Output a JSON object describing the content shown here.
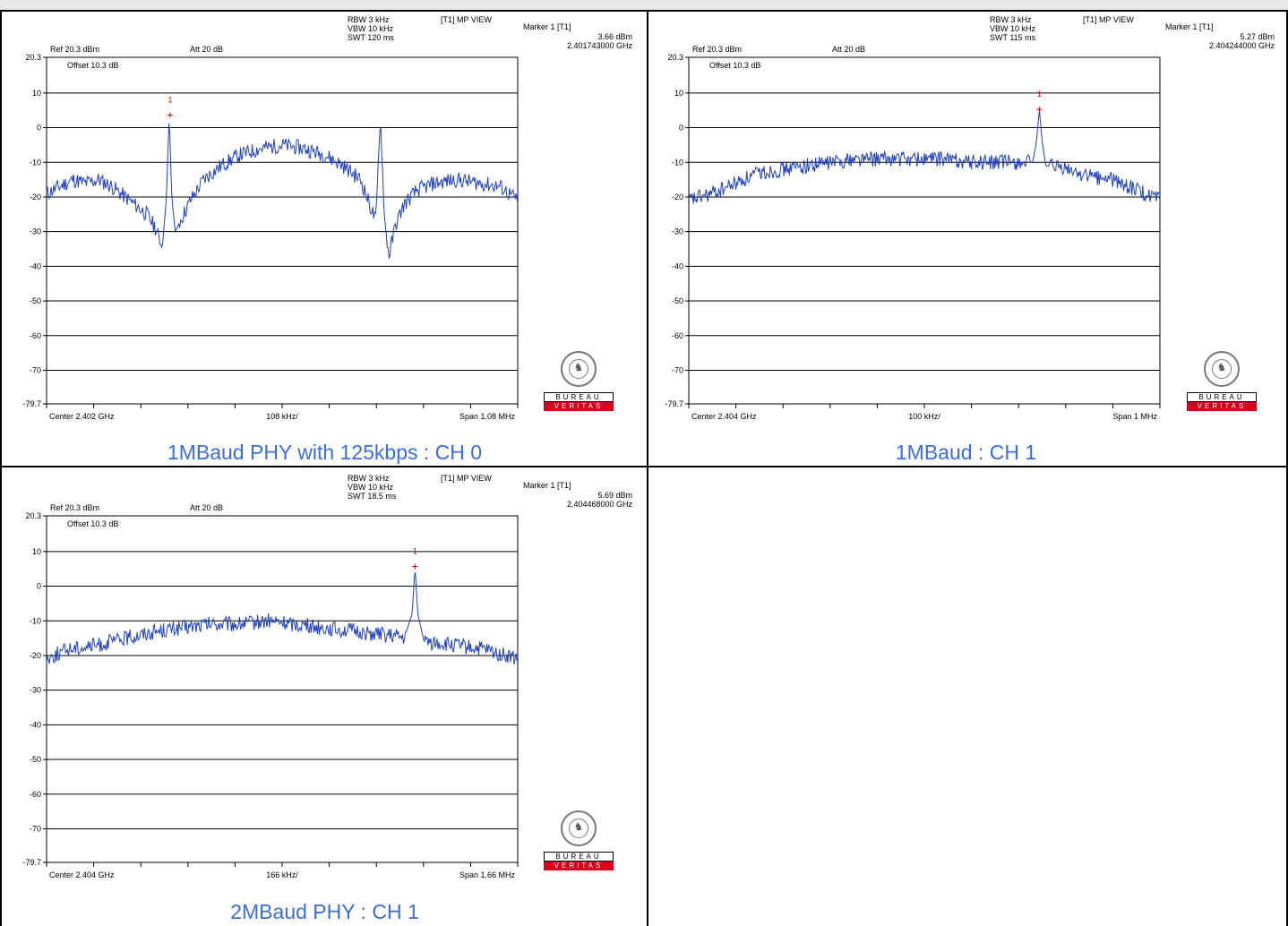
{
  "panels": [
    {
      "caption": "1MBaud PHY with 125kbps : CH 0",
      "ref": "Ref 20.3 dBm",
      "att": "Att  20 dB",
      "offset": "Offset 10.3 dB",
      "rbw": "RBW 3 kHz",
      "vbw": "VBW 10 kHz",
      "swt": "SWT 120 ms",
      "trace": "[T1] MP VIEW",
      "marker_title": "Marker 1 [T1]",
      "marker_level": "3.66 dBm",
      "marker_freq": "2.401743000 GHz",
      "center": "Center 2.402 GHz",
      "div": "108 kHz/",
      "span": "Span 1.08 MHz",
      "logo_top": "BUREAU",
      "logo_bottom": "VERITAS"
    },
    {
      "caption": "1MBaud    : CH 1",
      "ref": "Ref 20.3 dBm",
      "att": "Att  20 dB",
      "offset": "Offset 10.3 dB",
      "rbw": "RBW 3 kHz",
      "vbw": "VBW 10 kHz",
      "swt": "SWT 115 ms",
      "trace": "[T1] MP VIEW",
      "marker_title": "Marker 1 [T1]",
      "marker_level": "5.27 dBm",
      "marker_freq": "2.404244000 GHz",
      "center": "Center 2.404 GHz",
      "div": "100 kHz/",
      "span": "Span 1 MHz",
      "logo_top": "BUREAU",
      "logo_bottom": "VERITAS"
    },
    {
      "caption": "2MBaud PHY : CH 1",
      "ref": "Ref 20.3 dBm",
      "att": "Att  20 dB",
      "offset": "Offset 10.3 dB",
      "rbw": "RBW 3 kHz",
      "vbw": "VBW 10 kHz",
      "swt": "SWT 18.5 ms",
      "trace": "[T1] MP VIEW",
      "marker_title": "Marker 1 [T1]",
      "marker_level": "5.69 dBm",
      "marker_freq": "2.404468000 GHz",
      "center": "Center 2.404 GHz",
      "div": "166 kHz/",
      "span": "Span 1.66 MHz",
      "logo_top": "BUREAU",
      "logo_bottom": "VERITAS"
    }
  ],
  "chart_data": [
    {
      "type": "line",
      "title": "",
      "xlabel": "",
      "ylabel": "",
      "x_center_ghz": 2.402,
      "x_span_mhz": 1.08,
      "ylim": [
        -79.7,
        20.3
      ],
      "yticks": [
        "20.3",
        "10",
        "0",
        "-10",
        "-20",
        "-30",
        "-40",
        "-50",
        "-60",
        "-70",
        "-79.7"
      ],
      "marker": {
        "label": "1",
        "x_ghz": 2.401743,
        "y_dbm": 3.66
      },
      "series": [
        {
          "color": "#1f3fbf",
          "points_mhz_offset_dbm": [
            [
              -0.54,
              -19
            ],
            [
              -0.51,
              -17
            ],
            [
              -0.48,
              -15
            ],
            [
              -0.45,
              -16
            ],
            [
              -0.42,
              -15
            ],
            [
              -0.39,
              -17
            ],
            [
              -0.36,
              -20
            ],
            [
              -0.33,
              -23
            ],
            [
              -0.31,
              -25
            ],
            [
              -0.29,
              -29
            ],
            [
              -0.275,
              -35
            ],
            [
              -0.265,
              -20
            ],
            [
              -0.259,
              3.7
            ],
            [
              -0.253,
              -20
            ],
            [
              -0.245,
              -30
            ],
            [
              -0.23,
              -26
            ],
            [
              -0.21,
              -21
            ],
            [
              -0.18,
              -15
            ],
            [
              -0.14,
              -11
            ],
            [
              -0.1,
              -8
            ],
            [
              -0.05,
              -6
            ],
            [
              0.0,
              -5
            ],
            [
              0.05,
              -6
            ],
            [
              0.1,
              -8
            ],
            [
              0.14,
              -11
            ],
            [
              0.18,
              -15
            ],
            [
              0.2,
              -22
            ],
            [
              0.215,
              -27
            ],
            [
              0.225,
              3.5
            ],
            [
              0.235,
              -27
            ],
            [
              0.245,
              -37
            ],
            [
              0.26,
              -28
            ],
            [
              0.28,
              -22
            ],
            [
              0.31,
              -18
            ],
            [
              0.35,
              -16
            ],
            [
              0.4,
              -15
            ],
            [
              0.45,
              -16
            ],
            [
              0.5,
              -17
            ],
            [
              0.54,
              -21
            ]
          ]
        }
      ]
    },
    {
      "type": "line",
      "title": "",
      "xlabel": "",
      "ylabel": "",
      "x_center_ghz": 2.404,
      "x_span_mhz": 1.0,
      "ylim": [
        -79.7,
        20.3
      ],
      "yticks": [
        "20.3",
        "10",
        "0",
        "-10",
        "-20",
        "-30",
        "-40",
        "-50",
        "-60",
        "-70",
        "-79.7"
      ],
      "marker": {
        "label": "1",
        "x_ghz": 2.404244,
        "y_dbm": 5.27
      },
      "series": [
        {
          "color": "#1f3fbf",
          "points_mhz_offset_dbm": [
            [
              -0.5,
              -21
            ],
            [
              -0.45,
              -19
            ],
            [
              -0.4,
              -16
            ],
            [
              -0.35,
              -13
            ],
            [
              -0.3,
              -12
            ],
            [
              -0.25,
              -11
            ],
            [
              -0.2,
              -10
            ],
            [
              -0.15,
              -9
            ],
            [
              -0.1,
              -9
            ],
            [
              -0.05,
              -9
            ],
            [
              0.0,
              -9
            ],
            [
              0.05,
              -9
            ],
            [
              0.1,
              -10
            ],
            [
              0.15,
              -10
            ],
            [
              0.2,
              -10
            ],
            [
              0.23,
              -10
            ],
            [
              0.238,
              -4
            ],
            [
              0.244,
              5.3
            ],
            [
              0.25,
              -4
            ],
            [
              0.258,
              -11
            ],
            [
              0.3,
              -12
            ],
            [
              0.35,
              -14
            ],
            [
              0.4,
              -15
            ],
            [
              0.45,
              -18
            ],
            [
              0.5,
              -21
            ]
          ]
        }
      ]
    },
    {
      "type": "line",
      "title": "",
      "xlabel": "",
      "ylabel": "",
      "x_center_ghz": 2.404,
      "x_span_mhz": 1.66,
      "ylim": [
        -79.7,
        20.3
      ],
      "yticks": [
        "20.3",
        "10",
        "0",
        "-10",
        "-20",
        "-30",
        "-40",
        "-50",
        "-60",
        "-70",
        "-79.7"
      ],
      "marker": {
        "label": "1",
        "x_ghz": 2.404468,
        "y_dbm": 5.69
      },
      "series": [
        {
          "color": "#1f3fbf",
          "points_mhz_offset_dbm": [
            [
              -0.83,
              -21
            ],
            [
              -0.75,
              -18
            ],
            [
              -0.65,
              -17
            ],
            [
              -0.55,
              -15
            ],
            [
              -0.45,
              -13
            ],
            [
              -0.35,
              -12
            ],
            [
              -0.25,
              -11
            ],
            [
              -0.15,
              -11
            ],
            [
              -0.05,
              -10
            ],
            [
              0.05,
              -11
            ],
            [
              0.15,
              -12
            ],
            [
              0.25,
              -13
            ],
            [
              0.35,
              -14
            ],
            [
              0.43,
              -15
            ],
            [
              0.458,
              -8
            ],
            [
              0.468,
              5.7
            ],
            [
              0.478,
              -8
            ],
            [
              0.5,
              -16
            ],
            [
              0.6,
              -17
            ],
            [
              0.7,
              -18
            ],
            [
              0.83,
              -21
            ]
          ]
        }
      ]
    }
  ]
}
